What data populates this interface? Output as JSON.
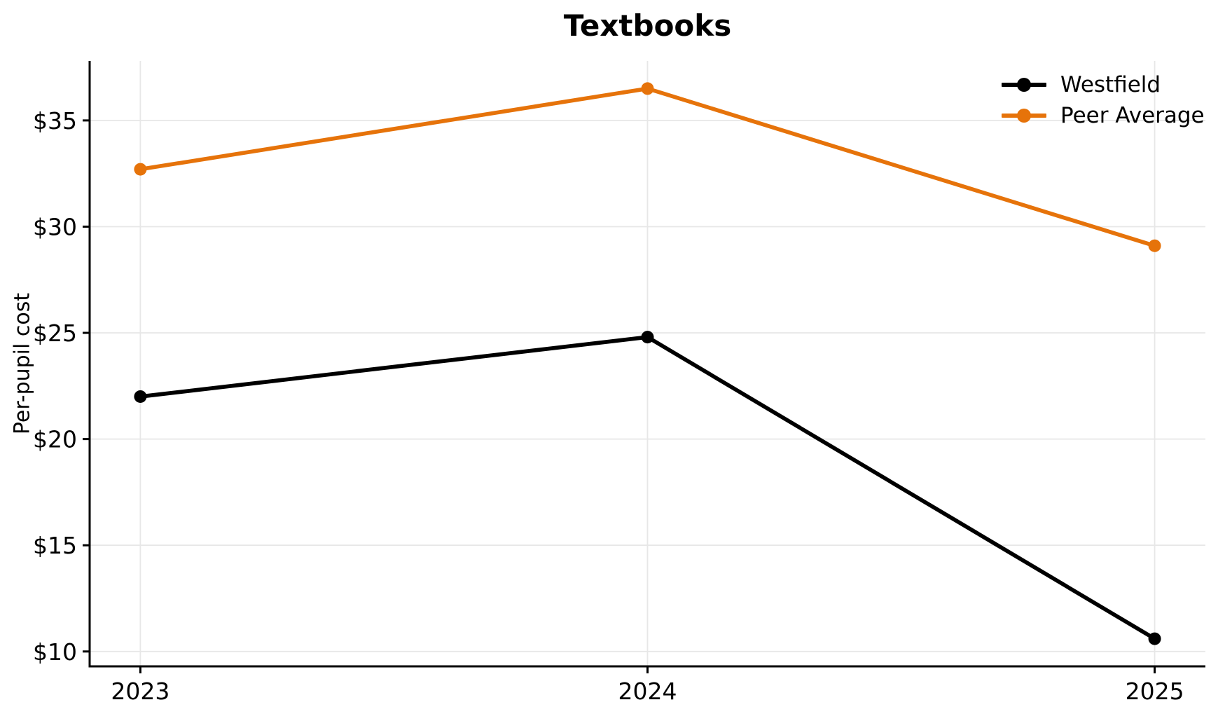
{
  "chart_data": {
    "type": "line",
    "title": "Textbooks",
    "ylabel": "Per-pupil cost",
    "xlabel": "",
    "x": [
      2023,
      2024,
      2025
    ],
    "x_tick_labels": [
      "2023",
      "2024",
      "2025"
    ],
    "y_ticks": [
      10,
      15,
      20,
      25,
      30,
      35
    ],
    "y_tick_labels": [
      "$10",
      "$15",
      "$20",
      "$25",
      "$30",
      "$35"
    ],
    "xlim": [
      2022.9,
      2025.1
    ],
    "ylim": [
      9.3,
      37.8
    ],
    "grid": true,
    "legend_position": "upper right",
    "series": [
      {
        "name": "Westfield",
        "color": "#000000",
        "values": [
          22.0,
          24.8,
          10.6
        ]
      },
      {
        "name": "Peer Average",
        "color": "#e6730a",
        "values": [
          32.7,
          36.5,
          29.1
        ]
      }
    ],
    "colors": {
      "grid": "#e7e7e7",
      "axis": "#000000",
      "text": "#000000",
      "background": "#ffffff"
    }
  }
}
